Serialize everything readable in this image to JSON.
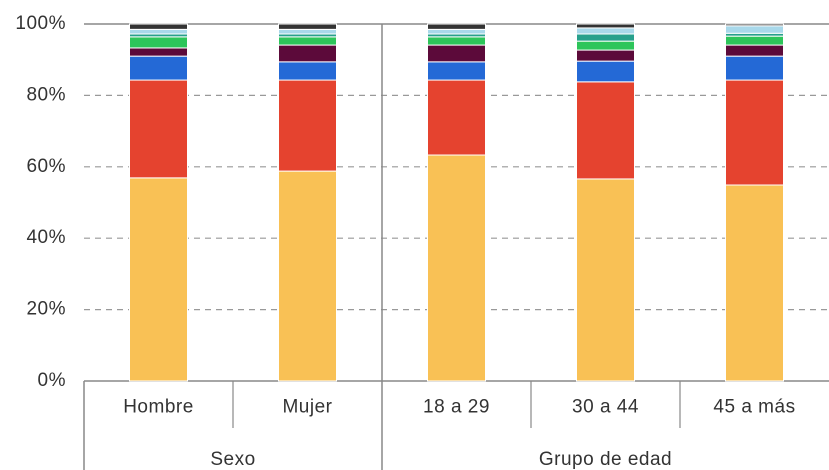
{
  "chart_data": {
    "type": "stacked_bar",
    "groups": [
      {
        "label": "Sexo",
        "categories": [
          "Hombre",
          "Mujer"
        ]
      },
      {
        "label": "Grupo de edad",
        "categories": [
          "18 a 29",
          "30 a 44",
          "45 a más"
        ]
      }
    ],
    "series": [
      {
        "color": "#F9C155",
        "values": [
          56.9,
          58.8,
          63.3,
          56.6,
          54.9
        ]
      },
      {
        "color": "#E5432F",
        "values": [
          27.4,
          25.5,
          21.0,
          27.2,
          29.4
        ]
      },
      {
        "color": "#2469D6",
        "values": [
          6.7,
          5.1,
          5.1,
          5.8,
          6.7
        ]
      },
      {
        "color": "#5C0A3A",
        "values": [
          2.3,
          4.7,
          4.7,
          3.1,
          3.1
        ]
      },
      {
        "color": "#2DC55A",
        "values": [
          3.1,
          2.3,
          2.3,
          2.5,
          2.5
        ]
      },
      {
        "color": "#27A08C",
        "values": [
          0.8,
          0.8,
          0.8,
          2.0,
          0.8
        ]
      },
      {
        "color": "#A8D8EA",
        "values": [
          1.3,
          1.3,
          1.3,
          1.7,
          2.1
        ]
      },
      {
        "color": "#333333",
        "values": [
          1.5,
          1.5,
          1.5,
          1.1,
          0.5
        ]
      }
    ],
    "ylim": [
      0,
      100
    ],
    "yticks": [
      {
        "value": 0,
        "label": "0%"
      },
      {
        "value": 20,
        "label": "20%"
      },
      {
        "value": 40,
        "label": "40%"
      },
      {
        "value": 60,
        "label": "60%"
      },
      {
        "value": 80,
        "label": "80%"
      },
      {
        "value": 100,
        "label": "100%"
      }
    ],
    "grid": true
  }
}
